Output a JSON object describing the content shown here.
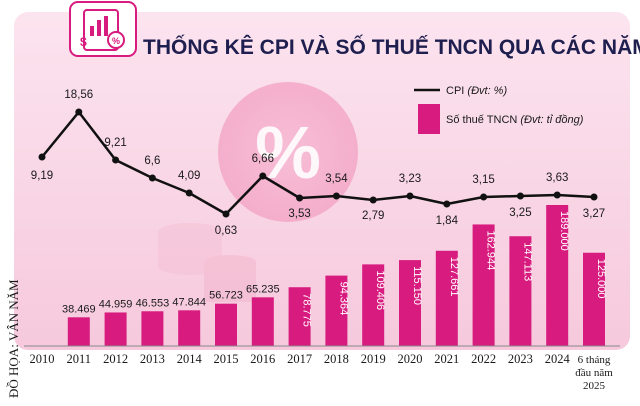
{
  "chart_data": {
    "type": "bar+line",
    "title": "THỐNG KÊ CPI VÀ SỐ THUẾ TNCN QUA CÁC NĂM",
    "categories": [
      "2010",
      "2011",
      "2012",
      "2013",
      "2014",
      "2015",
      "2016",
      "2017",
      "2018",
      "2019",
      "2020",
      "2021",
      "2022",
      "2023",
      "2024",
      "6 tháng đầu năm 2025"
    ],
    "category_lines": [
      [
        "2010"
      ],
      [
        "2011"
      ],
      [
        "2012"
      ],
      [
        "2013"
      ],
      [
        "2014"
      ],
      [
        "2015"
      ],
      [
        "2016"
      ],
      [
        "2017"
      ],
      [
        "2018"
      ],
      [
        "2019"
      ],
      [
        "2020"
      ],
      [
        "2021"
      ],
      [
        "2022"
      ],
      [
        "2023"
      ],
      [
        "2024"
      ],
      [
        "6 tháng",
        "đầu năm",
        "2025"
      ]
    ],
    "series": [
      {
        "name": "CPI",
        "unit": "(Đvt: %)",
        "type": "line",
        "color": "#111111",
        "values": [
          9.19,
          18.56,
          9.21,
          6.6,
          4.09,
          0.63,
          6.66,
          3.53,
          3.54,
          2.79,
          3.23,
          1.84,
          3.15,
          3.25,
          3.63,
          3.27
        ],
        "labels": [
          "9,19",
          "18,56",
          "9,21",
          "6,6",
          "4,09",
          "0,63",
          "6,66",
          "3,53",
          "3,54",
          "2,79",
          "3,23",
          "1,84",
          "3,15",
          "3,25",
          "3,63",
          "3,27"
        ]
      },
      {
        "name": "Số thuế TNCN",
        "unit": "(Đvt: tỉ đồng)",
        "type": "bar",
        "color": "#d81b7e",
        "values": [
          null,
          38469,
          44959,
          46553,
          47844,
          56723,
          65235,
          78775,
          94364,
          109406,
          115150,
          127661,
          162944,
          147113,
          189000,
          125000
        ],
        "labels": [
          "",
          "38.469",
          "44.959",
          "46.553",
          "47.844",
          "56.723",
          "65.235",
          "78.775",
          "94.364",
          "109.406",
          "115.150",
          "127.661",
          "162.944",
          "147.113",
          "189.000",
          "125.000"
        ]
      }
    ],
    "legend": {
      "position": "top-right"
    },
    "credit": "ĐỒ HỌA: VÂN NĂM"
  }
}
